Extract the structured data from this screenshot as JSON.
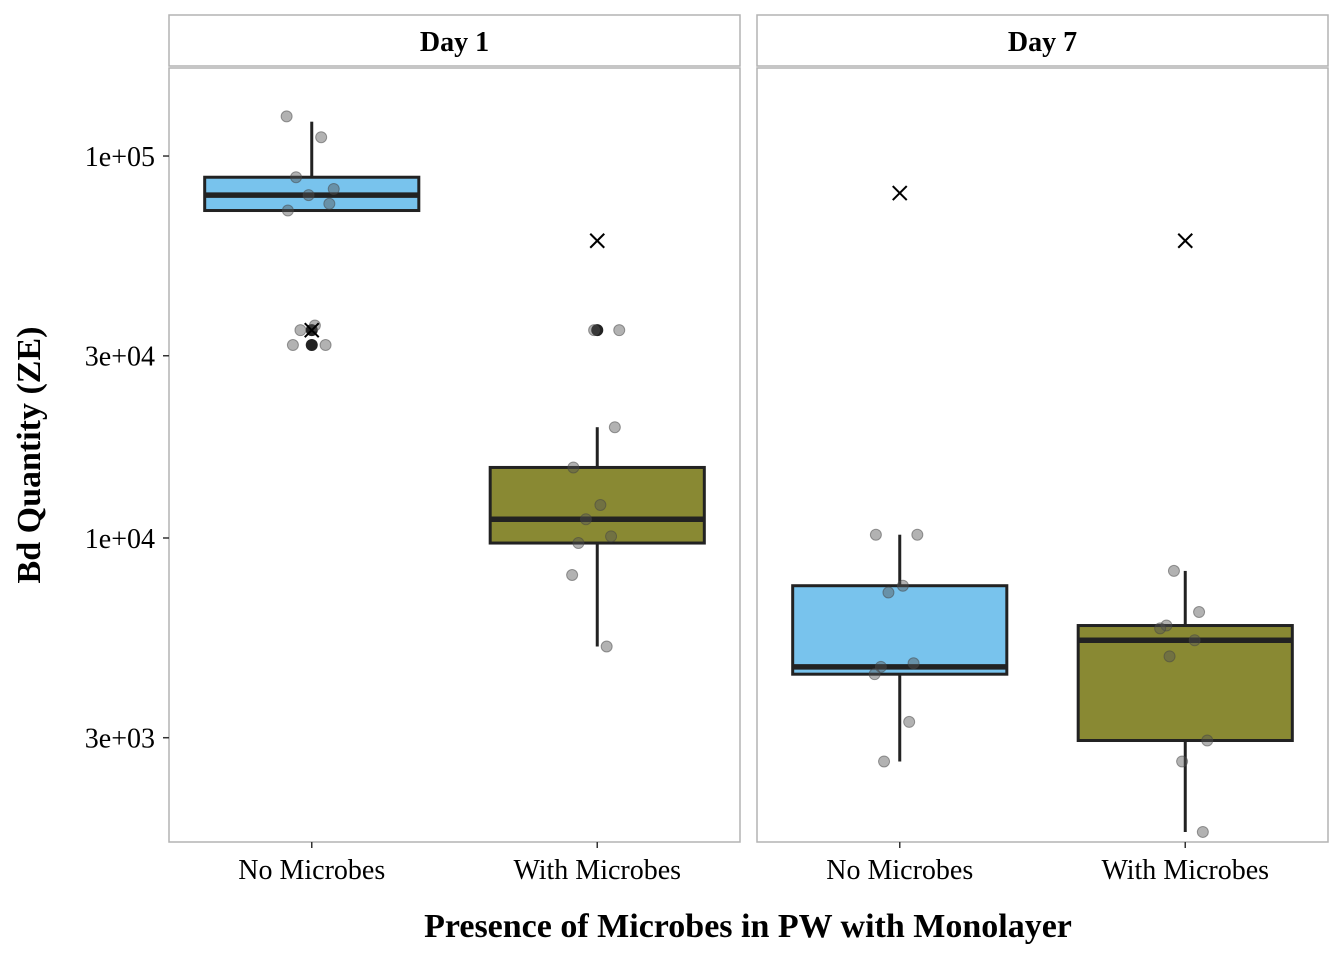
{
  "chart_data": {
    "type": "box",
    "xlabel": "Presence of Microbes in PW with Monolayer",
    "ylabel": "Bd Quantity (ZE)",
    "y_scale": "log10",
    "ylim": [
      1600,
      170000
    ],
    "y_ticks": [
      {
        "value": 3000,
        "label": "3e+03"
      },
      {
        "value": 10000,
        "label": "1e+04"
      },
      {
        "value": 30000,
        "label": "3e+04"
      },
      {
        "value": 100000,
        "label": "1e+05"
      }
    ],
    "categories": [
      "No Microbes",
      "With Microbes"
    ],
    "grid": false,
    "legend": "none",
    "colors": {
      "No Microbes": "#56b4e9",
      "With Microbes": "#6b6b00"
    },
    "panels": [
      {
        "label": "Day 1",
        "boxes": [
          {
            "category": "No Microbes",
            "q1": 72000,
            "median": 79000,
            "q3": 88000,
            "whisker_low": 72000,
            "whisker_high": 123000,
            "outliers": [
              35000,
              32000
            ],
            "mean": 35000,
            "points": [
              127000,
              112000,
              88000,
              82000,
              79000,
              75000,
              72000,
              36000,
              35000,
              32000,
              32000
            ]
          },
          {
            "category": "With Microbes",
            "q1": 9700,
            "median": 11200,
            "q3": 15300,
            "whisker_low": 5200,
            "whisker_high": 19500,
            "outliers": [
              35000
            ],
            "mean": 60000,
            "points": [
              35000,
              35000,
              19500,
              15300,
              12200,
              11200,
              10100,
              9700,
              8000,
              5200
            ]
          }
        ]
      },
      {
        "label": "Day 7",
        "boxes": [
          {
            "category": "No Microbes",
            "q1": 4400,
            "median": 4600,
            "q3": 7500,
            "whisker_low": 2600,
            "whisker_high": 10200,
            "outliers": [],
            "mean": 80000,
            "points": [
              10200,
              10200,
              7500,
              7200,
              4700,
              4600,
              4400,
              3300,
              2600
            ]
          },
          {
            "category": "With Microbes",
            "q1": 2950,
            "median": 5400,
            "q3": 5900,
            "whisker_low": 1700,
            "whisker_high": 8200,
            "outliers": [],
            "mean": 60000,
            "points": [
              8200,
              6400,
              5900,
              5800,
              5400,
              4900,
              2950,
              2600,
              1700
            ]
          }
        ]
      }
    ]
  }
}
